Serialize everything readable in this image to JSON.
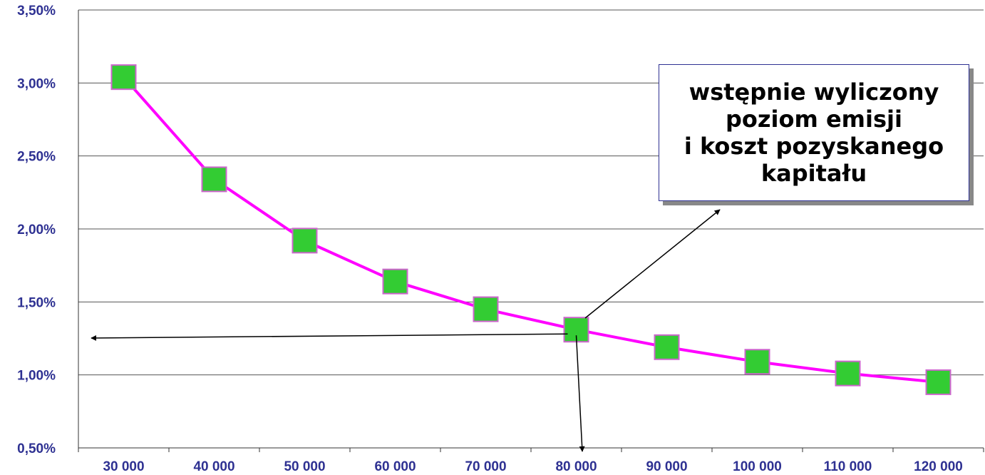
{
  "chart_data": {
    "type": "line",
    "x": [
      30000,
      40000,
      50000,
      60000,
      70000,
      80000,
      90000,
      100000,
      110000,
      120000
    ],
    "x_tick_labels": [
      "30 000",
      "40 000",
      "50 000",
      "60 000",
      "70 000",
      "80 000",
      "90 000",
      "100 000",
      "110 000",
      "120 000"
    ],
    "y_tick_labels": [
      "3,50%",
      "3,00%",
      "2,50%",
      "2,00%",
      "1,50%",
      "1,00%",
      "0,50%"
    ],
    "y_ticks": [
      3.5,
      3.0,
      2.5,
      2.0,
      1.5,
      1.0,
      0.5
    ],
    "ylim": [
      0.5,
      3.5
    ],
    "series": [
      {
        "values": [
          3.04,
          2.34,
          1.92,
          1.64,
          1.45,
          1.31,
          1.19,
          1.09,
          1.01,
          0.95
        ]
      }
    ],
    "grid": true,
    "colors": {
      "line": "#ff00ff",
      "marker": "#33cc33",
      "marker_edge": "#cc66cc",
      "tick_text": "#2e3192"
    },
    "annotation": {
      "text": "wstępnie wyliczony\npoziom emisji\ni koszt pozyskanego\nkapitału",
      "point_index": 5
    }
  }
}
